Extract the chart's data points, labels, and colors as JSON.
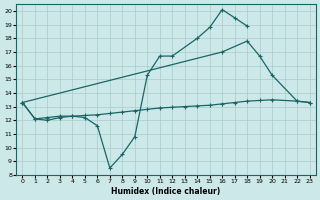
{
  "xlabel": "Humidex (Indice chaleur)",
  "bg_color": "#cce8e8",
  "grid_color": "#aacccc",
  "line_color": "#1a6666",
  "xlim": [
    -0.5,
    23.5
  ],
  "ylim": [
    8,
    20.5
  ],
  "xticks": [
    0,
    1,
    2,
    3,
    4,
    5,
    6,
    7,
    8,
    9,
    10,
    11,
    12,
    13,
    14,
    15,
    16,
    17,
    18,
    19,
    20,
    21,
    22,
    23
  ],
  "yticks": [
    8,
    9,
    10,
    11,
    12,
    13,
    14,
    15,
    16,
    17,
    18,
    19,
    20
  ],
  "line1_x": [
    0,
    1,
    2,
    3,
    4,
    5,
    6,
    7,
    8,
    9,
    10,
    11,
    12,
    14,
    15,
    16,
    17,
    18
  ],
  "line1_y": [
    13.3,
    12.1,
    12.0,
    12.2,
    12.3,
    12.2,
    11.6,
    8.5,
    9.5,
    10.8,
    15.3,
    16.7,
    16.7,
    18.0,
    18.8,
    20.1,
    19.5,
    18.9
  ],
  "line2_x": [
    0,
    16,
    18,
    19,
    20,
    22,
    23
  ],
  "line2_y": [
    13.3,
    17.0,
    17.8,
    16.7,
    15.3,
    13.4,
    13.3
  ],
  "line3_x": [
    0,
    1,
    2,
    3,
    4,
    5,
    6,
    7,
    8,
    9,
    10,
    11,
    12,
    13,
    14,
    15,
    16,
    17,
    18,
    19,
    20,
    22,
    23
  ],
  "line3_y": [
    13.3,
    12.1,
    12.2,
    12.3,
    12.3,
    12.35,
    12.4,
    12.5,
    12.6,
    12.7,
    12.8,
    12.9,
    12.95,
    13.0,
    13.05,
    13.1,
    13.2,
    13.3,
    13.4,
    13.45,
    13.5,
    13.4,
    13.3
  ]
}
